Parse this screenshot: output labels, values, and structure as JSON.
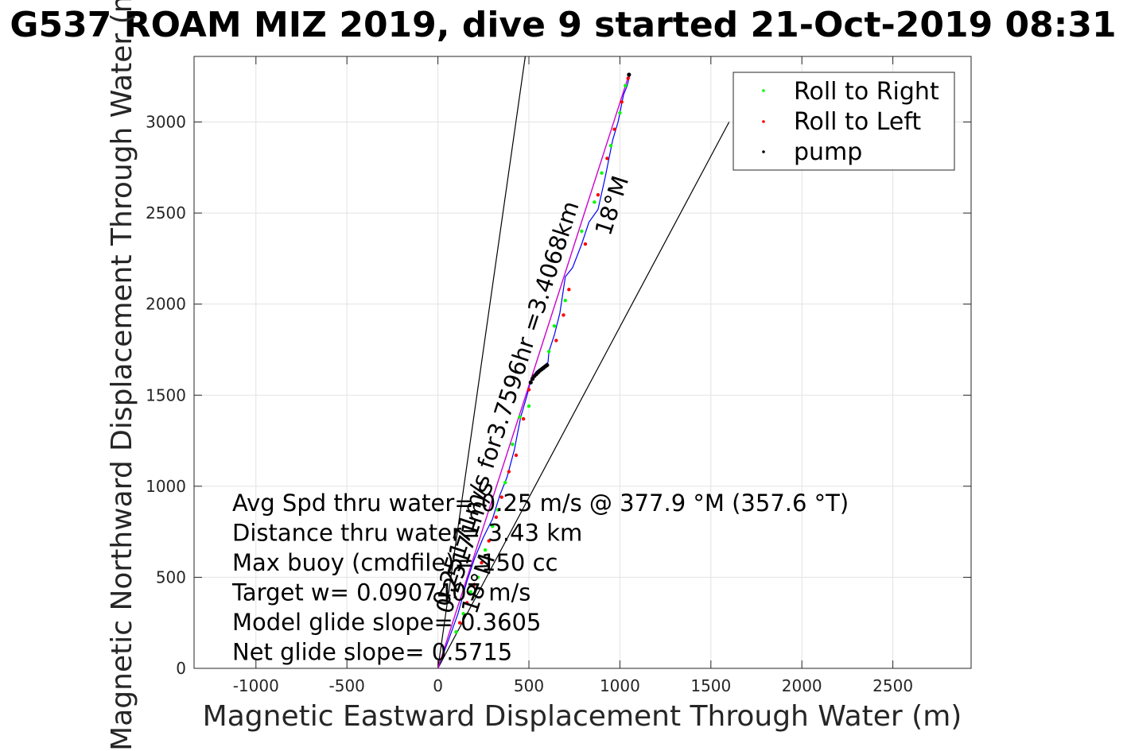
{
  "chart_data": {
    "type": "line",
    "title": "G537 ROAM MIZ 2019, dive 9 started 21-Oct-2019 08:31",
    "xlabel": "Magnetic Eastward Displacement Through Water (m)",
    "ylabel": "Magnetic Northward Displacement Through Water (m)",
    "xlim": [
      -1340,
      2930
    ],
    "ylim": [
      0,
      3360
    ],
    "xticks": [
      -1000,
      -500,
      0,
      500,
      1000,
      1500,
      2000,
      2500
    ],
    "yticks": [
      0,
      500,
      1000,
      1500,
      2000,
      2500,
      3000
    ],
    "grid": true,
    "legend_position": "top-right",
    "legend": [
      {
        "label": "Roll to Right",
        "color": "#00ff00"
      },
      {
        "label": "Roll to Left",
        "color": "#ff0000"
      },
      {
        "label": "pump",
        "color": "#000000"
      }
    ],
    "series": [
      {
        "style": "track",
        "color": "#0000ff",
        "x": [
          0,
          60,
          110,
          160,
          200,
          250,
          300,
          340,
          380,
          420,
          455,
          490,
          510,
          540,
          580,
          605,
          610,
          640,
          670,
          700,
          740,
          790,
          830,
          880,
          920,
          960,
          990,
          1020,
          1040,
          1055
        ],
        "y": [
          0,
          160,
          300,
          480,
          600,
          720,
          820,
          950,
          1050,
          1200,
          1380,
          1500,
          1580,
          1630,
          1660,
          1680,
          1740,
          1830,
          1950,
          2150,
          2200,
          2330,
          2450,
          2520,
          2700,
          2900,
          3000,
          3150,
          3200,
          3260
        ]
      },
      {
        "style": "heading",
        "color": "#cc00cc",
        "x": [
          0,
          1050
        ],
        "y": [
          0,
          3260
        ]
      },
      {
        "name": "Roll to Right",
        "style": "dots",
        "color": "#00ff00",
        "x": [
          100,
          140,
          180,
          220,
          260,
          300,
          330,
          370,
          410,
          450,
          500,
          610,
          640,
          700,
          790,
          860,
          900,
          950,
          1000,
          1030
        ],
        "y": [
          200,
          300,
          420,
          500,
          650,
          780,
          870,
          1020,
          1230,
          1380,
          1440,
          1740,
          1880,
          2020,
          2400,
          2560,
          2720,
          2870,
          3050,
          3200
        ]
      },
      {
        "name": "Roll to Left",
        "style": "dots",
        "color": "#ff0000",
        "x": [
          120,
          160,
          200,
          240,
          280,
          320,
          350,
          390,
          430,
          470,
          500,
          580,
          650,
          690,
          720,
          810,
          880,
          930,
          970,
          1010,
          1045
        ],
        "y": [
          250,
          360,
          460,
          580,
          700,
          830,
          940,
          1080,
          1170,
          1370,
          1530,
          1650,
          1800,
          1940,
          2080,
          2330,
          2600,
          2800,
          2960,
          3110,
          3240
        ]
      },
      {
        "name": "pump",
        "style": "dots",
        "color": "#000000",
        "x": [
          510,
          520,
          530,
          540,
          550,
          560,
          570,
          580,
          590,
          600,
          1050
        ],
        "y": [
          1570,
          1590,
          1605,
          1615,
          1625,
          1635,
          1642,
          1650,
          1658,
          1665,
          3260
        ]
      }
    ],
    "reference_lines": [
      {
        "x": [
          0,
          480
        ],
        "y": [
          0,
          3360
        ]
      },
      {
        "x": [
          0,
          1600
        ],
        "y": [
          0,
          3000
        ]
      }
    ],
    "annotations": {
      "leg_speed": "0.25171m/s for3.7596hr =3.4068km",
      "leg_heading": "18°M",
      "wedge_speed": "0.25171m/s",
      "wedge_heading": "18°M"
    },
    "stats": [
      "Avg Spd thru water=  0.25 m/s @ 377.9 °M (357.6 °T)",
      "Distance thru water=  3.43 km",
      "Max buoy (cmdfile)= 150 cc",
      "Target w= 0.0907407 m/s",
      "Model glide slope= 0.3605",
      "Net glide slope= 0.5715"
    ]
  }
}
